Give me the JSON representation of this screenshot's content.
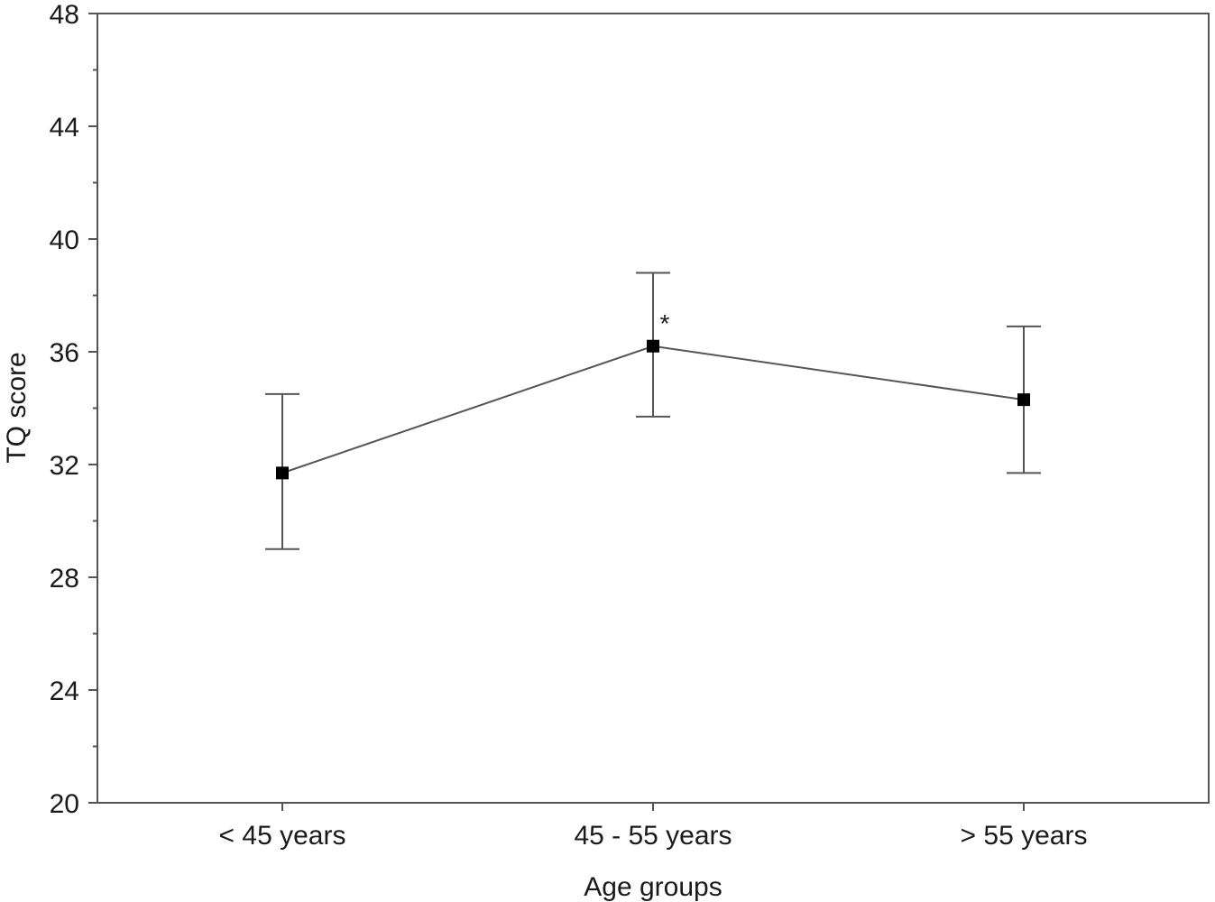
{
  "chart_data": {
    "type": "line",
    "title": "",
    "xlabel": "Age groups",
    "ylabel": "TQ score",
    "categories": [
      "< 45 years",
      "45 - 55 years",
      "> 55 years"
    ],
    "series": [
      {
        "values": [
          31.7,
          36.2,
          34.3
        ],
        "error_low": [
          29.0,
          33.7,
          31.7
        ],
        "error_high": [
          34.5,
          38.8,
          36.9
        ]
      }
    ],
    "ylim": [
      20,
      48
    ],
    "yticks": [
      "20",
      "24",
      "28",
      "32",
      "36",
      "40",
      "44",
      "48"
    ],
    "annotations": [
      {
        "category_index": 1,
        "text": "*"
      }
    ],
    "grid": false,
    "legend": "none"
  }
}
